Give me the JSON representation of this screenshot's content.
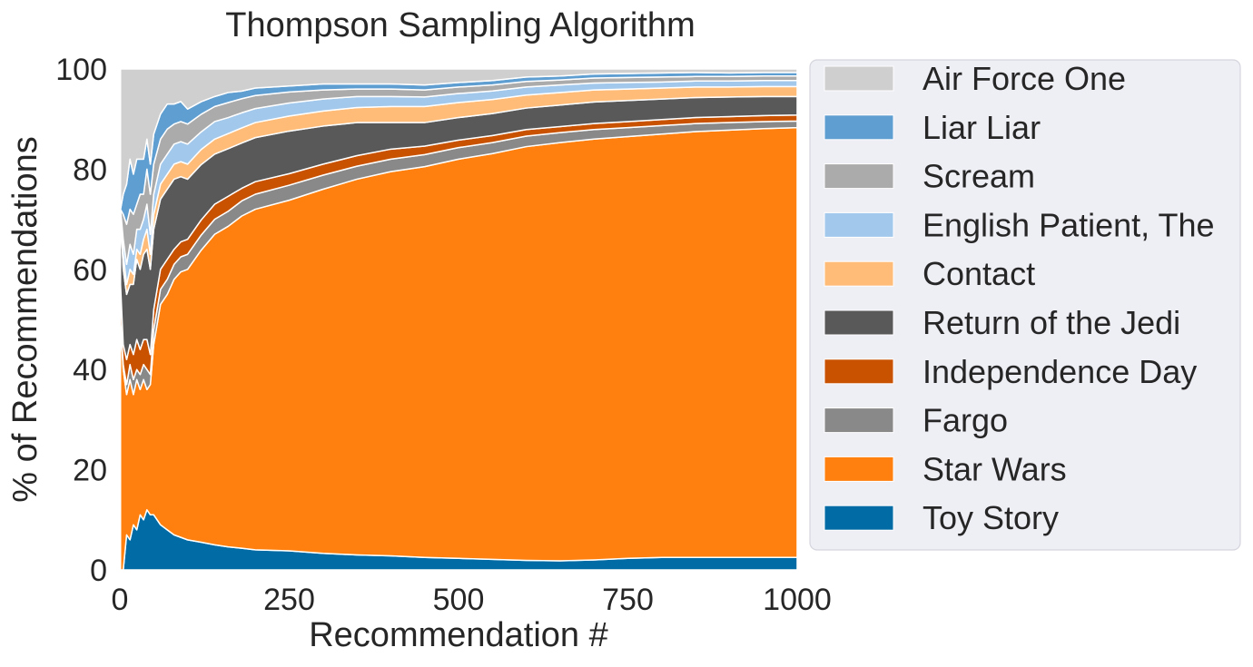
{
  "chart_data": {
    "type": "area",
    "stacked": true,
    "normalized_percent": true,
    "title": "Thompson Sampling Algorithm",
    "xlabel": "Recommendation #",
    "ylabel": "% of Recommendations",
    "xlim": [
      0,
      1000
    ],
    "ylim": [
      0,
      100
    ],
    "x_ticks": [
      0,
      250,
      500,
      750,
      1000
    ],
    "x_tick_labels": [
      "0",
      "250",
      "500",
      "750",
      "1000"
    ],
    "y_ticks": [
      0,
      20,
      40,
      60,
      80,
      100
    ],
    "y_tick_labels": [
      "0",
      "20",
      "40",
      "60",
      "80",
      "100"
    ],
    "grid": false,
    "legend_position": "right-outside",
    "x": [
      1,
      5,
      10,
      15,
      20,
      25,
      30,
      35,
      40,
      45,
      50,
      60,
      70,
      80,
      90,
      100,
      120,
      140,
      160,
      180,
      200,
      250,
      300,
      350,
      400,
      450,
      500,
      550,
      600,
      650,
      700,
      750,
      800,
      850,
      900,
      950,
      1000
    ],
    "series": [
      {
        "name": "Toy Story",
        "color": "#006BA4",
        "values": [
          0,
          0,
          7,
          6,
          9,
          8,
          11,
          10,
          12,
          11,
          11,
          9,
          8,
          7,
          6.5,
          6,
          5.5,
          5,
          4.6,
          4.3,
          4.0,
          3.8,
          3.3,
          3.0,
          2.8,
          2.5,
          2.3,
          2.1,
          1.9,
          1.8,
          2.0,
          2.3,
          2.5,
          2.5,
          2.5,
          2.5,
          2.5
        ]
      },
      {
        "name": "Star Wars",
        "color": "#FF800E",
        "values": [
          50,
          40,
          28,
          32,
          26,
          30,
          25,
          28,
          24,
          26,
          34,
          44,
          47,
          51,
          53,
          54,
          58,
          62,
          64,
          66,
          68,
          70,
          72.7,
          75,
          76.7,
          78,
          79.7,
          81,
          82.6,
          83.5,
          84,
          84.2,
          84.5,
          85,
          85.3,
          85.6,
          85.8
        ]
      },
      {
        "name": "Fargo",
        "color": "#898989",
        "values": [
          0,
          1,
          2,
          3,
          3,
          2,
          3,
          3,
          4,
          2,
          3,
          3,
          3,
          3,
          3,
          3,
          3,
          3,
          3,
          3,
          3,
          3,
          2.8,
          2.6,
          2.5,
          2.4,
          2.3,
          2.2,
          2.1,
          2.0,
          1.9,
          1.8,
          1.7,
          1.6,
          1.5,
          1.4,
          1.3
        ]
      },
      {
        "name": "Independence Day",
        "color": "#C85200",
        "values": [
          7,
          4,
          5,
          4,
          5,
          6,
          5,
          5,
          6,
          4,
          4,
          4,
          4,
          3,
          3,
          3,
          3,
          3,
          3,
          2.5,
          2.5,
          2.3,
          2.2,
          2.1,
          2.0,
          1.7,
          1.5,
          1.4,
          1.3,
          1.2,
          1.2,
          1.2,
          1.2,
          1.2,
          1.2,
          1.2,
          1.2
        ]
      },
      {
        "name": "Return of the Jedi",
        "color": "#595959",
        "values": [
          15,
          15,
          13,
          12,
          14,
          16,
          16,
          17,
          18,
          17,
          16,
          14,
          14,
          14,
          13,
          12,
          11,
          10,
          9.5,
          9,
          8.8,
          8.5,
          7.6,
          6.6,
          5.3,
          4.7,
          4.5,
          4.4,
          4.3,
          4.3,
          4.3,
          4.2,
          4.1,
          4.0,
          3.9,
          3.8,
          3.7
        ]
      },
      {
        "name": "Contact",
        "color": "#FFBC79",
        "values": [
          0,
          3,
          2,
          3,
          2,
          2,
          3,
          3,
          4,
          3,
          3,
          3,
          3,
          3,
          3,
          3,
          3,
          3,
          3,
          3,
          3,
          3,
          3,
          3,
          3.2,
          3.2,
          3.0,
          2.8,
          2.6,
          2.5,
          2.4,
          2.3,
          2.2,
          2.1,
          2.0,
          2.0,
          2.0
        ]
      },
      {
        "name": "English Patient, The",
        "color": "#A2C8EC",
        "values": [
          0,
          3,
          4,
          5,
          4,
          4,
          5,
          4,
          5,
          4,
          4,
          4,
          4,
          4,
          4,
          4,
          3.5,
          3.5,
          3.2,
          3,
          2.8,
          2.6,
          2.4,
          2.2,
          2.0,
          1.9,
          1.8,
          1.7,
          1.6,
          1.5,
          1.4,
          1.3,
          1.2,
          1.2,
          1.2,
          1.2,
          1.2
        ]
      },
      {
        "name": "Scream",
        "color": "#ABABAB",
        "values": [
          0,
          5,
          8,
          7,
          8,
          5,
          7,
          5,
          7,
          8,
          6,
          5,
          5,
          4,
          4,
          4,
          3.5,
          3,
          3,
          2.8,
          2.6,
          2.2,
          1.8,
          1.5,
          1.5,
          1.4,
          1.3,
          1.2,
          1.1,
          1.0,
          1.0,
          1.0,
          1.0,
          0.9,
          0.9,
          0.9,
          0.9
        ]
      },
      {
        "name": "Liar Liar",
        "color": "#5F9ED1",
        "values": [
          0,
          4,
          8,
          10,
          8,
          9,
          7,
          7,
          6,
          6,
          6,
          5,
          5,
          4,
          4,
          3,
          2.5,
          2,
          2,
          1.5,
          1.5,
          1.2,
          1.2,
          1.0,
          1.0,
          1.0,
          0.9,
          0.9,
          0.9,
          0.8,
          0.8,
          0.8,
          0.8,
          0.8,
          0.7,
          0.7,
          0.7
        ]
      },
      {
        "name": "Air Force One",
        "color": "#CFCFCF",
        "values": [
          28,
          25,
          23,
          18,
          21,
          18,
          18,
          18,
          14,
          19,
          13,
          9,
          7,
          7,
          6.5,
          8,
          6.5,
          5.5,
          4.7,
          4.4,
          3.8,
          3.4,
          3.0,
          3.0,
          3.0,
          3.2,
          2.7,
          2.3,
          1.6,
          1.4,
          1.0,
          0.9,
          0.8,
          0.7,
          0.8,
          0.7,
          0.7
        ]
      }
    ]
  }
}
